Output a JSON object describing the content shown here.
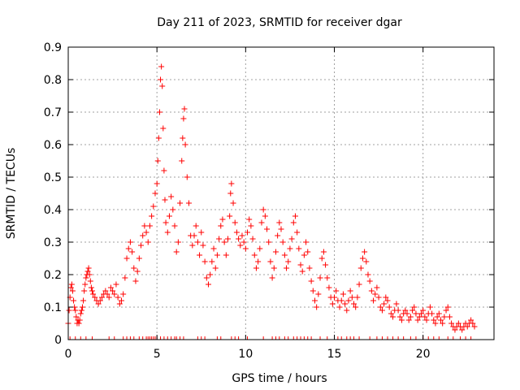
{
  "chart_data": {
    "type": "scatter",
    "title": "Day 211 of 2023, SRMTID for receiver dgar",
    "xlabel": "GPS time / hours",
    "ylabel": "SRMTID / TECUs",
    "xlim": [
      0,
      24
    ],
    "ylim": [
      0,
      0.9
    ],
    "x_ticks": [
      0,
      5,
      10,
      15,
      20
    ],
    "y_ticks": [
      0,
      0.1,
      0.2,
      0.3,
      0.4,
      0.5,
      0.6,
      0.7,
      0.8,
      0.9
    ],
    "grid": true,
    "marker": "+",
    "color": "#ff0000",
    "series": [
      {
        "name": "SRMTID",
        "points": [
          [
            0.0,
            0.05
          ],
          [
            0.05,
            0.09
          ],
          [
            0.1,
            0.13
          ],
          [
            0.15,
            0.16
          ],
          [
            0.2,
            0.17
          ],
          [
            0.25,
            0.15
          ],
          [
            0.3,
            0.12
          ],
          [
            0.35,
            0.1
          ],
          [
            0.4,
            0.09
          ],
          [
            0.45,
            0.07
          ],
          [
            0.5,
            0.05
          ],
          [
            0.55,
            0.06
          ],
          [
            0.6,
            0.05
          ],
          [
            0.65,
            0.06
          ],
          [
            0.7,
            0.08
          ],
          [
            0.75,
            0.09
          ],
          [
            0.8,
            0.1
          ],
          [
            0.85,
            0.12
          ],
          [
            0.9,
            0.15
          ],
          [
            0.95,
            0.17
          ],
          [
            1.0,
            0.19
          ],
          [
            1.05,
            0.2
          ],
          [
            1.1,
            0.21
          ],
          [
            1.15,
            0.22
          ],
          [
            1.2,
            0.2
          ],
          [
            1.25,
            0.18
          ],
          [
            1.3,
            0.16
          ],
          [
            1.35,
            0.15
          ],
          [
            1.4,
            0.14
          ],
          [
            1.5,
            0.13
          ],
          [
            1.6,
            0.12
          ],
          [
            1.7,
            0.11
          ],
          [
            1.8,
            0.12
          ],
          [
            1.9,
            0.13
          ],
          [
            2.0,
            0.14
          ],
          [
            2.1,
            0.15
          ],
          [
            2.2,
            0.14
          ],
          [
            2.3,
            0.13
          ],
          [
            2.4,
            0.16
          ],
          [
            2.5,
            0.15
          ],
          [
            2.6,
            0.14
          ],
          [
            2.7,
            0.17
          ],
          [
            2.8,
            0.13
          ],
          [
            2.9,
            0.11
          ],
          [
            3.0,
            0.12
          ],
          [
            3.1,
            0.14
          ],
          [
            3.2,
            0.19
          ],
          [
            3.3,
            0.25
          ],
          [
            3.4,
            0.28
          ],
          [
            3.5,
            0.3
          ],
          [
            3.6,
            0.27
          ],
          [
            3.7,
            0.22
          ],
          [
            3.8,
            0.18
          ],
          [
            3.9,
            0.21
          ],
          [
            4.0,
            0.25
          ],
          [
            4.1,
            0.29
          ],
          [
            4.2,
            0.32
          ],
          [
            4.3,
            0.35
          ],
          [
            4.4,
            0.33
          ],
          [
            4.5,
            0.3
          ],
          [
            4.6,
            0.35
          ],
          [
            4.7,
            0.38
          ],
          [
            4.8,
            0.41
          ],
          [
            4.9,
            0.45
          ],
          [
            5.0,
            0.48
          ],
          [
            5.05,
            0.55
          ],
          [
            5.1,
            0.62
          ],
          [
            5.15,
            0.7
          ],
          [
            5.2,
            0.8
          ],
          [
            5.25,
            0.84
          ],
          [
            5.3,
            0.78
          ],
          [
            5.35,
            0.65
          ],
          [
            5.4,
            0.52
          ],
          [
            5.45,
            0.43
          ],
          [
            5.5,
            0.36
          ],
          [
            5.6,
            0.33
          ],
          [
            5.7,
            0.38
          ],
          [
            5.8,
            0.44
          ],
          [
            5.9,
            0.4
          ],
          [
            6.0,
            0.35
          ],
          [
            6.1,
            0.27
          ],
          [
            6.2,
            0.3
          ],
          [
            6.3,
            0.42
          ],
          [
            6.4,
            0.55
          ],
          [
            6.45,
            0.62
          ],
          [
            6.5,
            0.68
          ],
          [
            6.55,
            0.71
          ],
          [
            6.6,
            0.6
          ],
          [
            6.7,
            0.5
          ],
          [
            6.8,
            0.42
          ],
          [
            6.9,
            0.32
          ],
          [
            7.0,
            0.29
          ],
          [
            7.1,
            0.32
          ],
          [
            7.2,
            0.35
          ],
          [
            7.3,
            0.3
          ],
          [
            7.4,
            0.26
          ],
          [
            7.5,
            0.33
          ],
          [
            7.6,
            0.29
          ],
          [
            7.7,
            0.24
          ],
          [
            7.8,
            0.19
          ],
          [
            7.9,
            0.17
          ],
          [
            8.0,
            0.2
          ],
          [
            8.1,
            0.24
          ],
          [
            8.2,
            0.28
          ],
          [
            8.3,
            0.22
          ],
          [
            8.4,
            0.26
          ],
          [
            8.5,
            0.31
          ],
          [
            8.6,
            0.35
          ],
          [
            8.7,
            0.37
          ],
          [
            8.8,
            0.3
          ],
          [
            8.9,
            0.26
          ],
          [
            9.0,
            0.31
          ],
          [
            9.1,
            0.38
          ],
          [
            9.15,
            0.45
          ],
          [
            9.2,
            0.48
          ],
          [
            9.3,
            0.42
          ],
          [
            9.4,
            0.36
          ],
          [
            9.5,
            0.33
          ],
          [
            9.6,
            0.31
          ],
          [
            9.7,
            0.29
          ],
          [
            9.8,
            0.32
          ],
          [
            9.9,
            0.3
          ],
          [
            10.0,
            0.28
          ],
          [
            10.1,
            0.33
          ],
          [
            10.2,
            0.37
          ],
          [
            10.3,
            0.35
          ],
          [
            10.4,
            0.31
          ],
          [
            10.5,
            0.26
          ],
          [
            10.6,
            0.22
          ],
          [
            10.7,
            0.24
          ],
          [
            10.8,
            0.28
          ],
          [
            10.9,
            0.36
          ],
          [
            11.0,
            0.4
          ],
          [
            11.1,
            0.38
          ],
          [
            11.2,
            0.34
          ],
          [
            11.3,
            0.3
          ],
          [
            11.4,
            0.24
          ],
          [
            11.5,
            0.19
          ],
          [
            11.6,
            0.22
          ],
          [
            11.7,
            0.27
          ],
          [
            11.8,
            0.32
          ],
          [
            11.9,
            0.36
          ],
          [
            12.0,
            0.34
          ],
          [
            12.1,
            0.3
          ],
          [
            12.2,
            0.26
          ],
          [
            12.3,
            0.22
          ],
          [
            12.4,
            0.24
          ],
          [
            12.5,
            0.28
          ],
          [
            12.6,
            0.31
          ],
          [
            12.7,
            0.36
          ],
          [
            12.8,
            0.38
          ],
          [
            12.9,
            0.33
          ],
          [
            13.0,
            0.28
          ],
          [
            13.1,
            0.23
          ],
          [
            13.2,
            0.21
          ],
          [
            13.3,
            0.26
          ],
          [
            13.4,
            0.3
          ],
          [
            13.5,
            0.27
          ],
          [
            13.6,
            0.22
          ],
          [
            13.7,
            0.18
          ],
          [
            13.8,
            0.15
          ],
          [
            13.9,
            0.12
          ],
          [
            14.0,
            0.1
          ],
          [
            14.1,
            0.14
          ],
          [
            14.2,
            0.19
          ],
          [
            14.3,
            0.25
          ],
          [
            14.4,
            0.27
          ],
          [
            14.5,
            0.23
          ],
          [
            14.6,
            0.19
          ],
          [
            14.7,
            0.16
          ],
          [
            14.8,
            0.13
          ],
          [
            14.9,
            0.11
          ],
          [
            15.0,
            0.13
          ],
          [
            15.1,
            0.15
          ],
          [
            15.2,
            0.12
          ],
          [
            15.3,
            0.1
          ],
          [
            15.4,
            0.12
          ],
          [
            15.5,
            0.14
          ],
          [
            15.6,
            0.11
          ],
          [
            15.7,
            0.09
          ],
          [
            15.8,
            0.12
          ],
          [
            15.9,
            0.15
          ],
          [
            16.0,
            0.13
          ],
          [
            16.1,
            0.11
          ],
          [
            16.2,
            0.1
          ],
          [
            16.3,
            0.13
          ],
          [
            16.4,
            0.17
          ],
          [
            16.5,
            0.22
          ],
          [
            16.6,
            0.25
          ],
          [
            16.7,
            0.27
          ],
          [
            16.8,
            0.24
          ],
          [
            16.9,
            0.2
          ],
          [
            17.0,
            0.18
          ],
          [
            17.1,
            0.15
          ],
          [
            17.2,
            0.12
          ],
          [
            17.3,
            0.14
          ],
          [
            17.4,
            0.16
          ],
          [
            17.5,
            0.13
          ],
          [
            17.6,
            0.1
          ],
          [
            17.7,
            0.09
          ],
          [
            17.8,
            0.11
          ],
          [
            17.9,
            0.13
          ],
          [
            18.0,
            0.12
          ],
          [
            18.1,
            0.1
          ],
          [
            18.2,
            0.08
          ],
          [
            18.3,
            0.07
          ],
          [
            18.4,
            0.09
          ],
          [
            18.5,
            0.11
          ],
          [
            18.6,
            0.09
          ],
          [
            18.7,
            0.07
          ],
          [
            18.8,
            0.06
          ],
          [
            18.9,
            0.08
          ],
          [
            19.0,
            0.09
          ],
          [
            19.1,
            0.08
          ],
          [
            19.2,
            0.06
          ],
          [
            19.3,
            0.07
          ],
          [
            19.4,
            0.09
          ],
          [
            19.5,
            0.1
          ],
          [
            19.6,
            0.08
          ],
          [
            19.7,
            0.06
          ],
          [
            19.8,
            0.07
          ],
          [
            19.9,
            0.08
          ],
          [
            20.0,
            0.09
          ],
          [
            20.1,
            0.07
          ],
          [
            20.2,
            0.06
          ],
          [
            20.3,
            0.08
          ],
          [
            20.4,
            0.1
          ],
          [
            20.5,
            0.08
          ],
          [
            20.6,
            0.06
          ],
          [
            20.7,
            0.05
          ],
          [
            20.8,
            0.07
          ],
          [
            20.9,
            0.08
          ],
          [
            21.0,
            0.06
          ],
          [
            21.1,
            0.05
          ],
          [
            21.2,
            0.07
          ],
          [
            21.3,
            0.09
          ],
          [
            21.4,
            0.1
          ],
          [
            21.5,
            0.07
          ],
          [
            21.6,
            0.05
          ],
          [
            21.7,
            0.04
          ],
          [
            21.8,
            0.03
          ],
          [
            21.9,
            0.04
          ],
          [
            22.0,
            0.05
          ],
          [
            22.1,
            0.04
          ],
          [
            22.2,
            0.03
          ],
          [
            22.3,
            0.04
          ],
          [
            22.4,
            0.05
          ],
          [
            22.5,
            0.04
          ],
          [
            22.6,
            0.05
          ],
          [
            22.7,
            0.06
          ],
          [
            22.8,
            0.05
          ],
          [
            22.9,
            0.04
          ]
        ]
      }
    ],
    "rug_x": [
      0.1,
      0.4,
      0.7,
      1.0,
      1.35,
      2.3,
      2.6,
      3.1,
      3.3,
      3.5,
      3.7,
      4.0,
      4.2,
      4.4,
      4.5,
      4.6,
      4.7,
      4.8,
      4.9,
      5.0,
      5.2,
      5.4,
      5.6,
      5.8,
      6.0,
      6.1,
      6.3,
      6.5,
      7.3,
      7.5,
      7.7,
      8.4,
      8.6,
      9.2,
      9.4,
      9.6,
      10.1,
      11.0,
      11.5,
      11.7,
      11.9,
      12.2,
      12.4,
      12.7,
      12.9,
      13.1,
      13.3,
      13.5,
      13.7,
      14.2,
      14.6,
      15.2,
      15.4,
      15.7,
      15.9,
      16.1,
      16.4,
      17.0,
      17.4,
      17.7,
      18.0,
      18.3,
      18.6,
      18.9,
      19.3,
      19.6,
      20.0,
      20.3,
      20.6,
      20.9,
      21.4,
      21.7,
      22.1,
      22.4,
      22.7
    ]
  }
}
